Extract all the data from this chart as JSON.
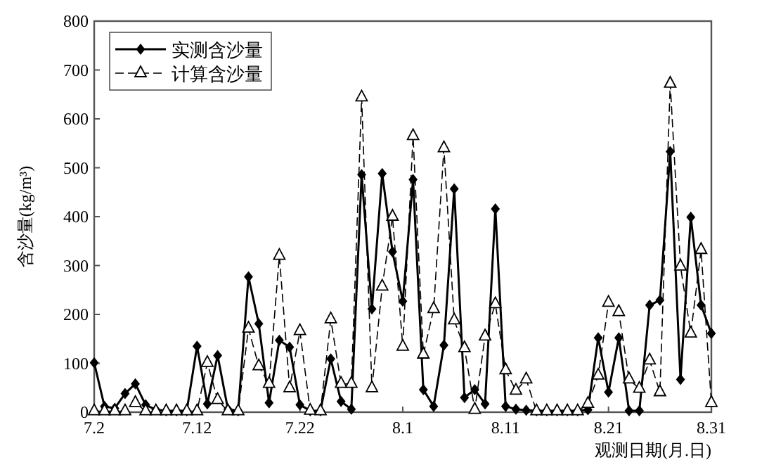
{
  "chart_data": {
    "type": "line",
    "xlabel": "观测日期(月.日)",
    "ylabel": "含沙量(kg/m³)",
    "x": [
      "--07-02",
      "--07-03",
      "--07-04",
      "--07-05",
      "--07-06",
      "--07-07",
      "--07-08",
      "--07-09",
      "--07-10",
      "--07-11",
      "--07-12",
      "--07-13",
      "--07-14",
      "--07-15",
      "--07-16",
      "--07-17",
      "--07-18",
      "--07-19",
      "--07-20",
      "--07-21",
      "--07-22",
      "--07-23",
      "--07-24",
      "--07-25",
      "--07-26",
      "--07-27",
      "--07-28",
      "--07-29",
      "--07-30",
      "--07-31",
      "--08-01",
      "--08-02",
      "--08-03",
      "--08-04",
      "--08-05",
      "--08-06",
      "--08-07",
      "--08-08",
      "--08-09",
      "--08-10",
      "--08-11",
      "--08-12",
      "--08-13",
      "--08-14",
      "--08-15",
      "--08-16",
      "--08-17",
      "--08-18",
      "--08-19",
      "--08-20",
      "--08-21",
      "--08-22",
      "--08-23",
      "--08-24",
      "--08-25",
      "--08-26",
      "--08-27",
      "--08-28",
      "--08-29",
      "--08-30",
      "--08-31"
    ],
    "series": [
      {
        "name": "实测含沙量",
        "color": "#000000",
        "marker": "diamond",
        "line_style": "solid",
        "values": [
          101,
          12,
          8,
          38,
          58,
          15,
          5,
          3,
          3,
          3,
          135,
          17,
          116,
          6,
          3,
          277,
          181,
          19,
          147,
          133,
          15,
          3,
          3,
          109,
          22,
          6,
          486,
          211,
          488,
          328,
          227,
          476,
          46,
          12,
          137,
          457,
          30,
          46,
          17,
          416,
          12,
          6,
          4,
          3,
          3,
          3,
          3,
          3,
          5,
          152,
          41,
          152,
          3,
          3,
          219,
          229,
          533,
          67,
          399,
          219,
          161
        ]
      },
      {
        "name": "计算含沙量",
        "color": "#000000",
        "marker": "triangle",
        "line_style": "dashed",
        "values": [
          2,
          2,
          2,
          2,
          19,
          2,
          2,
          2,
          2,
          2,
          2,
          101,
          25,
          2,
          2,
          171,
          94,
          58,
          320,
          49,
          166,
          3,
          2,
          190,
          58,
          58,
          644,
          49,
          257,
          400,
          134,
          565,
          118,
          211,
          540,
          188,
          131,
          5,
          155,
          221,
          86,
          44,
          67,
          2,
          2,
          2,
          2,
          2,
          17,
          75,
          224,
          205,
          67,
          48,
          106,
          41,
          672,
          298,
          161,
          332,
          19
        ]
      }
    ],
    "xlim": [
      "--07-02",
      "--08-31"
    ],
    "xticks": [
      {
        "value": "--07-02",
        "label": "7.2"
      },
      {
        "value": "--07-12",
        "label": "7.12"
      },
      {
        "value": "--07-22",
        "label": "7.22"
      },
      {
        "value": "--08-01",
        "label": "8.1"
      },
      {
        "value": "--08-11",
        "label": "8.11"
      },
      {
        "value": "--08-21",
        "label": "8.21"
      },
      {
        "value": "--08-31",
        "label": "8.31"
      }
    ],
    "ylim": [
      0,
      800
    ],
    "yticks": [
      0,
      100,
      200,
      300,
      400,
      500,
      600,
      700,
      800
    ],
    "grid": false,
    "legend": "top left"
  }
}
